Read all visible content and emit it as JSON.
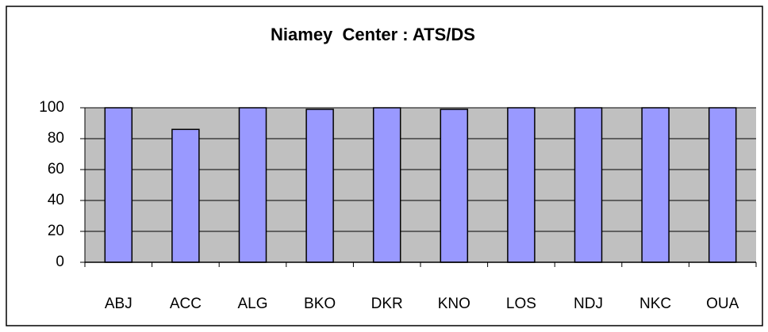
{
  "chart_data": {
    "type": "bar",
    "title": "Niamey  Center : ATS/DS",
    "categories": [
      "ABJ",
      "ACC",
      "ALG",
      "BKO",
      "DKR",
      "KNO",
      "LOS",
      "NDJ",
      "NKC",
      "OUA"
    ],
    "values": [
      100,
      86,
      100,
      99,
      100,
      99,
      100,
      100,
      100,
      100
    ],
    "color": "#9999ff",
    "ylim": [
      0,
      100
    ],
    "yticks": [
      0,
      20,
      40,
      60,
      80,
      100
    ],
    "grid": true
  }
}
